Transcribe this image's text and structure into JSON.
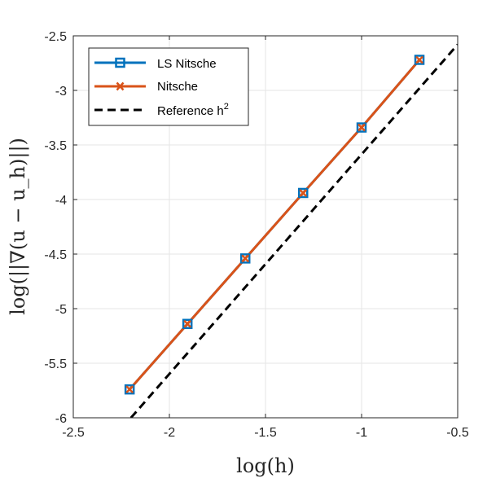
{
  "chart_data": {
    "type": "line",
    "xlabel": "log(h)",
    "ylabel": "log(||∇(u − u_h)||)",
    "xlim": [
      -2.5,
      -0.5
    ],
    "ylim": [
      -6,
      -2.5
    ],
    "xticks": [
      "-2.5",
      "-2",
      "-1.5",
      "-1",
      "-0.5"
    ],
    "yticks": [
      "-2.5",
      "-3",
      "-3.5",
      "-4",
      "-4.5",
      "-5",
      "-5.5",
      "-6"
    ],
    "grid": true,
    "legend_position": "top-left",
    "series": [
      {
        "name": "LS Nitsche",
        "color": "#0072BD",
        "marker": "square",
        "style": "solid",
        "x": [
          -2.207,
          -1.906,
          -1.605,
          -1.304,
          -1.0,
          -0.699
        ],
        "y": [
          -5.74,
          -5.14,
          -4.54,
          -3.94,
          -3.34,
          -2.72
        ]
      },
      {
        "name": "Nitsche",
        "color": "#D95319",
        "marker": "x",
        "style": "solid",
        "x": [
          -2.207,
          -1.906,
          -1.605,
          -1.304,
          -1.0,
          -0.699
        ],
        "y": [
          -5.74,
          -5.14,
          -4.54,
          -3.94,
          -3.34,
          -2.72
        ]
      },
      {
        "name": "Reference h",
        "name_sup": "2",
        "color": "#000000",
        "marker": "none",
        "style": "dashed",
        "x": [
          -2.2,
          -0.5
        ],
        "y": [
          -6.0,
          -2.58
        ]
      }
    ]
  }
}
